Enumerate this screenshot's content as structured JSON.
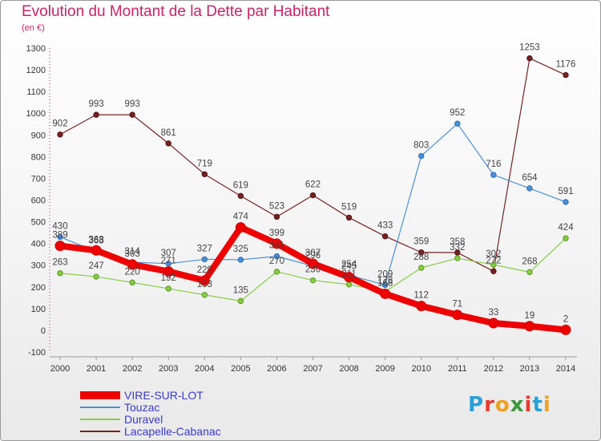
{
  "header": {
    "title": "Evolution du Montant de la Dette par Habitant",
    "subtitle": "(en €)"
  },
  "logo_text": "Proxiti",
  "chart_data": {
    "type": "line",
    "title": "Evolution du Montant de la Dette par Habitant",
    "subtitle": "(en €)",
    "xlabel": "",
    "ylabel": "",
    "x": [
      2000,
      2001,
      2002,
      2003,
      2004,
      2005,
      2006,
      2007,
      2008,
      2009,
      2010,
      2011,
      2012,
      2013,
      2014
    ],
    "ylim": [
      -100,
      1300
    ],
    "yticks": [
      -100,
      0,
      100,
      200,
      300,
      400,
      500,
      600,
      700,
      800,
      900,
      1000,
      1100,
      1200,
      1300
    ],
    "grid": false,
    "legend_position": "bottom-left",
    "series": [
      {
        "name": "VIRE-SUR-LOT",
        "color": "#ee0000",
        "values": [
          389,
          368,
          303,
          271,
          229,
          474,
          399,
          307,
          245,
          168,
          112,
          71,
          33,
          19,
          2
        ]
      },
      {
        "name": "Touzac",
        "color": "#4a90d9",
        "values": [
          430,
          363,
          314,
          307,
          327,
          325,
          341,
          296,
          254,
          209,
          803,
          952,
          716,
          654,
          591
        ]
      },
      {
        "name": "Duravel",
        "color": "#88cc44",
        "values": [
          263,
          247,
          220,
          192,
          163,
          135,
          270,
          230,
          211,
          178,
          288,
          332,
          302,
          268,
          424
        ]
      },
      {
        "name": "Lacapelle-Cabanac",
        "color": "#772222",
        "values": [
          902,
          993,
          993,
          861,
          719,
          619,
          523,
          622,
          519,
          433,
          359,
          358,
          272,
          1253,
          1176
        ]
      }
    ]
  }
}
